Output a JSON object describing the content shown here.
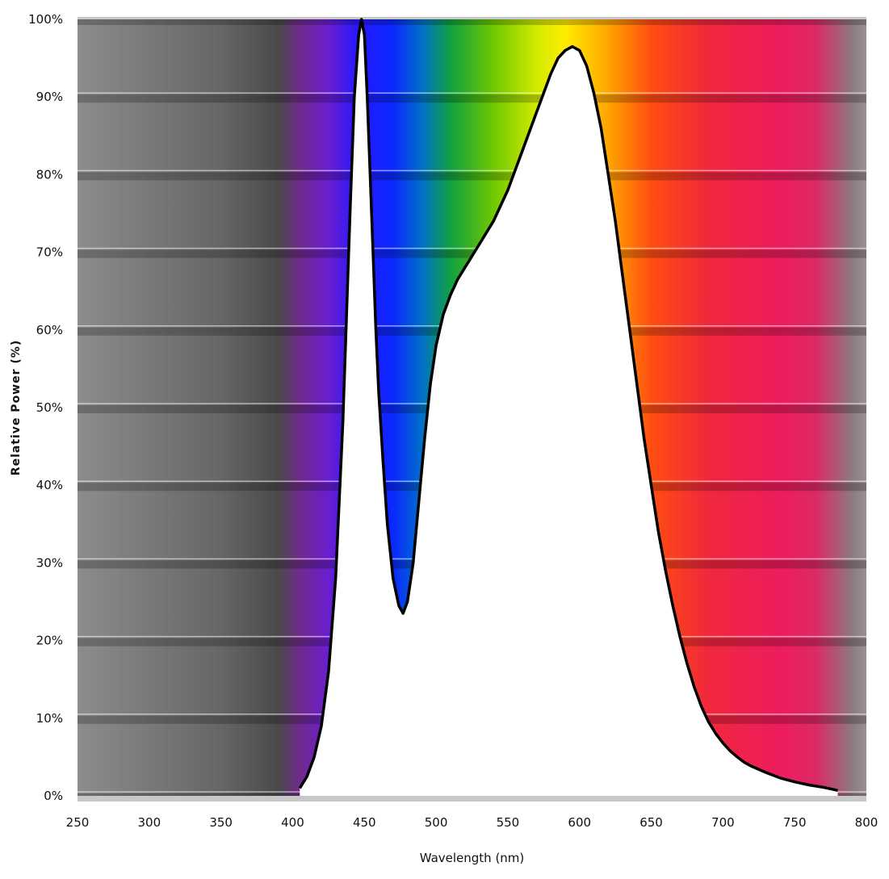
{
  "chart_data": {
    "type": "area",
    "xlabel": "Wavelength (nm)",
    "ylabel": "Relative Power (%)",
    "xlim": [
      250,
      800
    ],
    "ylim": [
      0,
      100
    ],
    "x_ticks": [
      "250",
      "300",
      "350",
      "400",
      "450",
      "500",
      "550",
      "600",
      "650",
      "700",
      "750",
      "800"
    ],
    "y_ticks": [
      "0%",
      "10%",
      "20%",
      "30%",
      "40%",
      "50%",
      "60%",
      "70%",
      "80%",
      "90%",
      "100%"
    ],
    "grid": true,
    "legend": "none",
    "background": "visible-spectrum gradient",
    "series": [
      {
        "x": [
          405,
          410,
          415,
          420,
          425,
          430,
          435,
          440,
          443,
          446,
          448,
          450,
          452,
          455,
          458,
          460,
          463,
          466,
          470,
          474,
          477,
          480,
          484,
          488,
          492,
          496,
          500,
          505,
          510,
          515,
          520,
          525,
          530,
          540,
          550,
          560,
          570,
          575,
          580,
          585,
          590,
          595,
          600,
          605,
          610,
          615,
          620,
          625,
          630,
          635,
          640,
          645,
          650,
          655,
          660,
          665,
          670,
          675,
          680,
          685,
          690,
          695,
          700,
          705,
          710,
          715,
          720,
          730,
          740,
          750,
          760,
          770,
          775,
          780
        ],
        "y": [
          1,
          2.5,
          5,
          9,
          16,
          28,
          48,
          75,
          90,
          98,
          100,
          98,
          90,
          75,
          60,
          52,
          43,
          35,
          28,
          24.5,
          23.5,
          25,
          30,
          38,
          46,
          53,
          58,
          62,
          64.5,
          66.5,
          68,
          69.5,
          71,
          74,
          78,
          83,
          88,
          90.5,
          93,
          95,
          96,
          96.5,
          96,
          94,
          90.5,
          86,
          80,
          74,
          67,
          60,
          53,
          46,
          40,
          34,
          29,
          24.5,
          20.5,
          17,
          14,
          11.5,
          9.5,
          8,
          6.8,
          5.8,
          5,
          4.3,
          3.8,
          3,
          2.3,
          1.8,
          1.4,
          1.1,
          0.9,
          0.7
        ]
      }
    ],
    "colors": {
      "background_gradient": [
        {
          "nm": 250,
          "color": "#8c8c8c"
        },
        {
          "nm": 350,
          "color": "#666666"
        },
        {
          "nm": 390,
          "color": "#4a4a4a"
        },
        {
          "nm": 405,
          "color": "#702a8c"
        },
        {
          "nm": 425,
          "color": "#6a1ed0"
        },
        {
          "nm": 445,
          "color": "#2818ff"
        },
        {
          "nm": 470,
          "color": "#0a28ff"
        },
        {
          "nm": 490,
          "color": "#0070c8"
        },
        {
          "nm": 510,
          "color": "#10a040"
        },
        {
          "nm": 540,
          "color": "#70c800"
        },
        {
          "nm": 570,
          "color": "#d2eb00"
        },
        {
          "nm": 590,
          "color": "#ffec00"
        },
        {
          "nm": 620,
          "color": "#ffa500"
        },
        {
          "nm": 650,
          "color": "#ff4d10"
        },
        {
          "nm": 690,
          "color": "#f0283c"
        },
        {
          "nm": 740,
          "color": "#ee1c5e"
        },
        {
          "nm": 765,
          "color": "#dc2a64"
        },
        {
          "nm": 790,
          "color": "#8c7a82"
        },
        {
          "nm": 800,
          "color": "#9a9090"
        }
      ],
      "area_fill": "#ffffff",
      "curve_stroke": "#000000"
    }
  }
}
